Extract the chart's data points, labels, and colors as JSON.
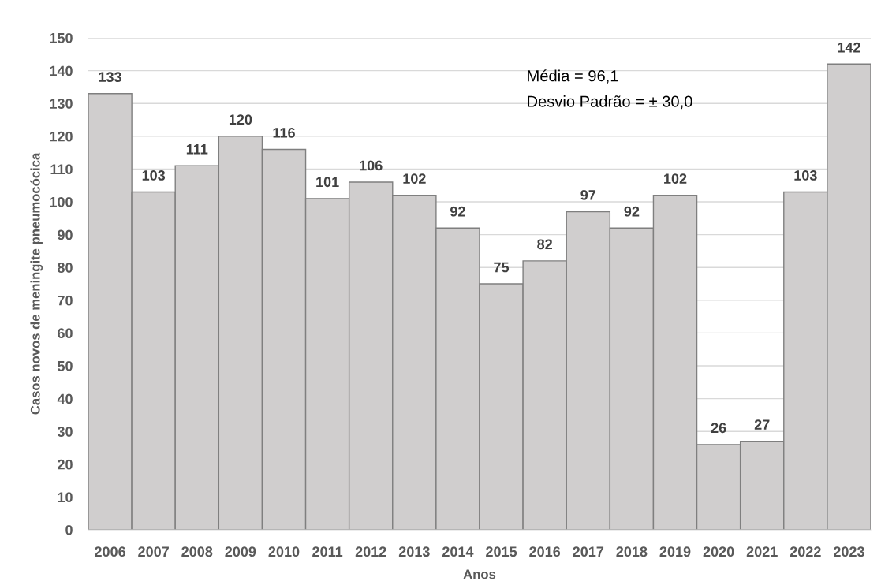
{
  "chart_data": {
    "type": "bar",
    "xlabel": "Anos",
    "ylabel": "Casos novos de meningite pneumocócica",
    "annotations": [
      "Média = 96,1",
      "Desvio Padrão = ± 30,0"
    ],
    "categories": [
      "2006",
      "2007",
      "2008",
      "2009",
      "2010",
      "2011",
      "2012",
      "2013",
      "2014",
      "2015",
      "2016",
      "2017",
      "2018",
      "2019",
      "2020",
      "2021",
      "2022",
      "2023"
    ],
    "values": [
      133,
      103,
      111,
      120,
      116,
      101,
      106,
      102,
      92,
      75,
      82,
      97,
      92,
      102,
      26,
      27,
      103,
      142
    ],
    "color": "#d0cece",
    "ylim": [
      0,
      150
    ],
    "yticks": [
      0,
      10,
      20,
      30,
      40,
      50,
      60,
      70,
      80,
      90,
      100,
      110,
      120,
      130,
      140,
      150
    ],
    "grid": "y",
    "data_labels": true
  }
}
